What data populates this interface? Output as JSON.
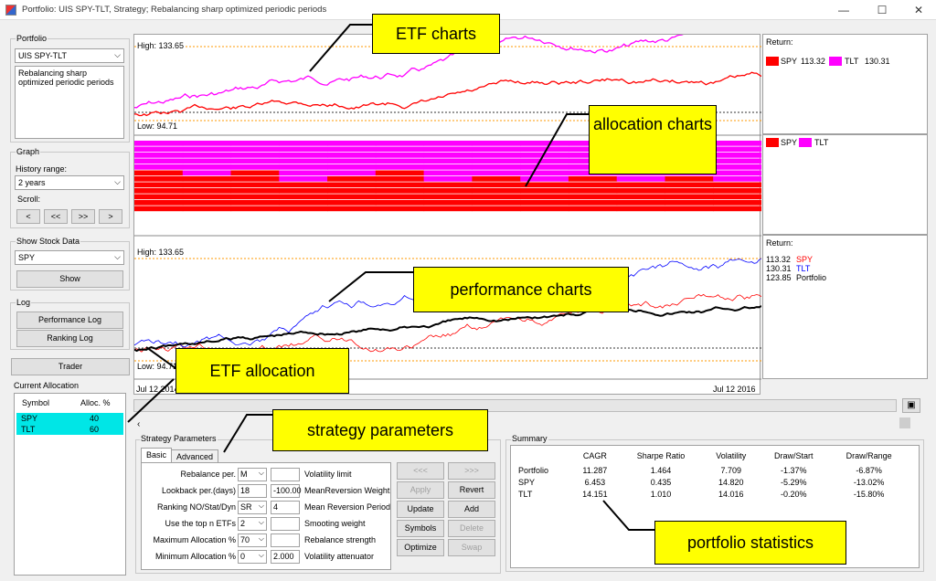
{
  "window": {
    "title": "Portfolio: UIS SPY-TLT, Strategy; Rebalancing sharp optimized periodic periods",
    "min": "—",
    "max": "☐",
    "close": "✕"
  },
  "sidebar": {
    "portfolio_label": "Portfolio",
    "portfolio_value": "UIS SPY-TLT",
    "portfolio_desc": "Rebalancing sharp optimized periodic periods",
    "graph_label": "Graph",
    "history_label": "History range:",
    "history_value": "2 years",
    "scroll_label": "Scroll:",
    "scroll_buttons": [
      "<",
      "<<",
      ">>",
      ">"
    ],
    "show_stock_label": "Show Stock Data",
    "stock_value": "SPY",
    "show_button": "Show",
    "log_label": "Log",
    "perf_log_button": "Performance Log",
    "ranking_log_button": "Ranking Log",
    "trader_button": "Trader",
    "alloc_label": "Current Allocation",
    "alloc_headers": [
      "Symbol",
      "Alloc. %"
    ],
    "alloc_rows": [
      {
        "symbol": "SPY",
        "alloc": "40"
      },
      {
        "symbol": "TLT",
        "alloc": "60"
      }
    ]
  },
  "charts": {
    "etf": {
      "high": "High: 133.65",
      "low": "Low: 94.71"
    },
    "perf": {
      "high": "High: 133.65",
      "low": "Low: 94.71",
      "date_start": "Jul 12 2014",
      "date_end": "Jul 12 2016"
    },
    "legend_etf": {
      "title": "Return:",
      "spy_label": "SPY",
      "spy_val": "113.32",
      "tlt_label": "TLT",
      "tlt_val": "130.31"
    },
    "legend_alloc": {
      "spy_label": "SPY",
      "tlt_label": "TLT"
    },
    "legend_perf": {
      "title": "Return:",
      "rows": [
        {
          "val": "113.32",
          "name": "SPY",
          "color": "#ff0000"
        },
        {
          "val": "130.31",
          "name": "TLT",
          "color": "#0000ff"
        },
        {
          "val": "123.85",
          "name": "Portfolio",
          "color": "#000000"
        }
      ]
    },
    "colors": {
      "spy": "#ff0000",
      "tlt": "#ff00ff",
      "tlt_perf": "#0000ff",
      "portfolio": "#000000",
      "limit": "#ff9900"
    }
  },
  "strategy": {
    "group_label": "Strategy Parameters",
    "tabs": [
      "Basic",
      "Advanced"
    ],
    "rows": [
      {
        "label": "Rebalance per.",
        "combo": "M",
        "value": "",
        "right": "Volatility limit"
      },
      {
        "label": "Lookback per.(days)",
        "combo": "18",
        "value": "-100.00",
        "right": "MeanReversion Weight"
      },
      {
        "label": "Ranking NO/Stat/Dyn",
        "combo": "SR",
        "value": "4",
        "right": "Mean Reversion Period"
      },
      {
        "label": "Use the top n ETFs",
        "combo": "2",
        "value": "",
        "right": "Smooting  weight"
      },
      {
        "label": "Maximum Allocation %",
        "combo": "70",
        "value": "",
        "right": "Rebalance strength"
      },
      {
        "label": "Minimum Allocation %",
        "combo": "0",
        "value": "2.000",
        "right": "Volatility attenuator"
      }
    ],
    "buttons_left": [
      "<<<",
      "Apply",
      "Update",
      "Symbols",
      "Optimize"
    ],
    "buttons_right": [
      ">>>",
      "Revert",
      "Add",
      "Delete",
      "Swap"
    ]
  },
  "summary": {
    "label": "Summary",
    "headers": [
      "",
      "CAGR",
      "Sharpe Ratio",
      "Volatility",
      "Draw/Start",
      "Draw/Range"
    ],
    "rows": [
      [
        "Portfolio",
        "11.287",
        "1.464",
        "7.709",
        "-1.37%",
        "-6.87%"
      ],
      [
        "SPY",
        "6.453",
        "0.435",
        "14.820",
        "-5.29%",
        "-13.02%"
      ],
      [
        "TLT",
        "14.151",
        "1.010",
        "14.016",
        "-0.20%",
        "-15.80%"
      ]
    ]
  },
  "callouts": {
    "etf_charts": "ETF charts",
    "allocation_charts": "allocation charts",
    "performance_charts": "performance charts",
    "etf_allocation": "ETF allocation",
    "strategy_parameters": "strategy parameters",
    "portfolio_statistics": "portfolio statistics"
  },
  "icons": {
    "copy_chart": "chart-copy-icon",
    "scroll_left": "scroll-left-icon"
  }
}
